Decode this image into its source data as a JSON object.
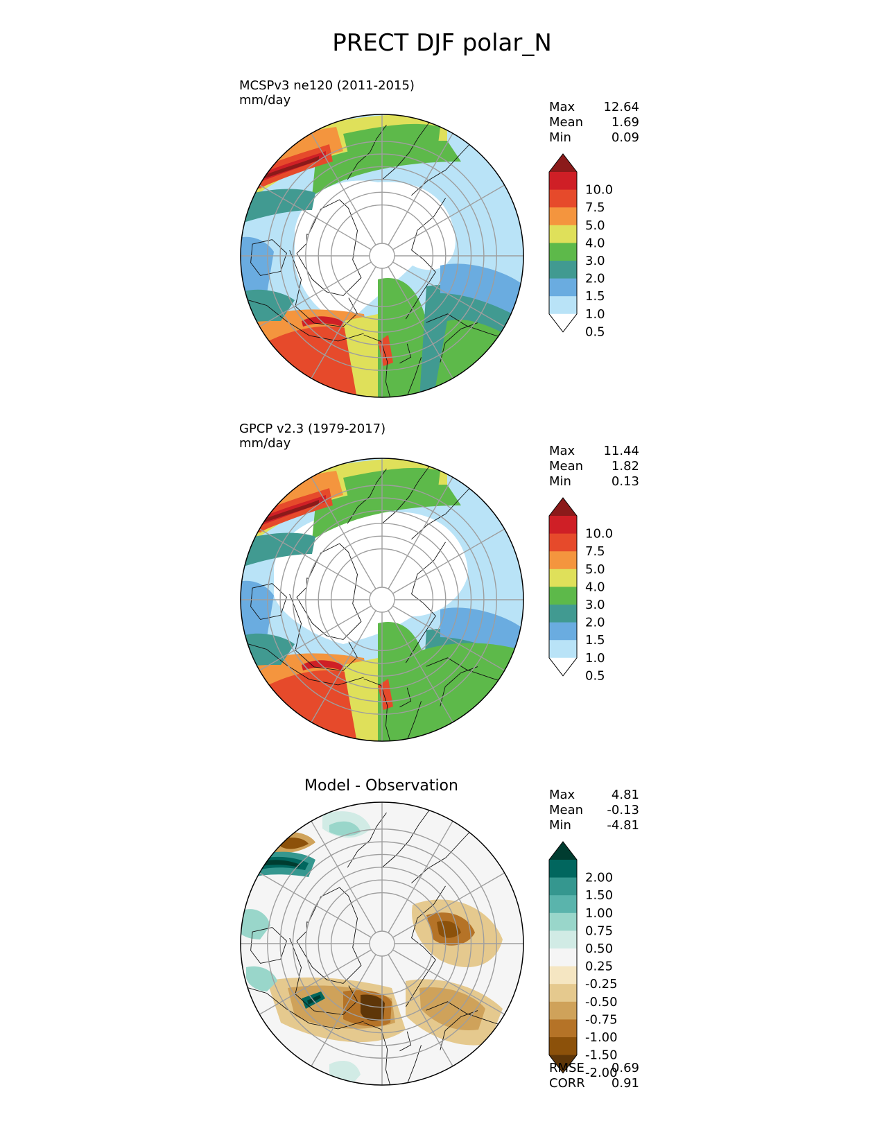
{
  "title": "PRECT DJF polar_N",
  "panels": [
    {
      "label": "MCSPv3 ne120 (2011-2015)",
      "units": "mm/day",
      "stats": [
        {
          "name": "Max",
          "value": "12.64"
        },
        {
          "name": "Mean",
          "value": "1.69"
        },
        {
          "name": "Min",
          "value": "0.09"
        }
      ]
    },
    {
      "label": "GPCP v2.3 (1979-2017)",
      "units": "mm/day",
      "stats": [
        {
          "name": "Max",
          "value": "11.44"
        },
        {
          "name": "Mean",
          "value": "1.82"
        },
        {
          "name": "Min",
          "value": "0.13"
        }
      ]
    },
    {
      "label": "Model - Observation",
      "stats": [
        {
          "name": "Max",
          "value": "4.81"
        },
        {
          "name": "Mean",
          "value": "-0.13"
        },
        {
          "name": "Min",
          "value": "-4.81"
        }
      ],
      "metrics": [
        {
          "name": "RMSE",
          "value": "0.69"
        },
        {
          "name": "CORR",
          "value": "0.91"
        }
      ]
    }
  ],
  "precip_colorbar": {
    "ticks": [
      "10.0",
      "7.5",
      "5.0",
      "4.0",
      "3.0",
      "2.0",
      "1.5",
      "1.0",
      "0.5"
    ],
    "colors": [
      "#8b1a1a",
      "#cf1f26",
      "#e64a2b",
      "#f4953e",
      "#dfe05a",
      "#5db94a",
      "#419a91",
      "#6aace0",
      "#b9e3f7",
      "#ffffff"
    ]
  },
  "diff_colorbar": {
    "ticks": [
      "2.00",
      "1.50",
      "1.00",
      "0.75",
      "0.50",
      "0.25",
      "-0.25",
      "-0.50",
      "-0.75",
      "-1.00",
      "-1.50",
      "-2.00"
    ],
    "colors": [
      "#003c30",
      "#01665e",
      "#35978f",
      "#5ab4ac",
      "#99d6ca",
      "#d1ebe5",
      "#f5f5f5",
      "#f5e6c2",
      "#e5c98e",
      "#cfa25a",
      "#b57327",
      "#8c510a",
      "#5e3608"
    ]
  }
}
